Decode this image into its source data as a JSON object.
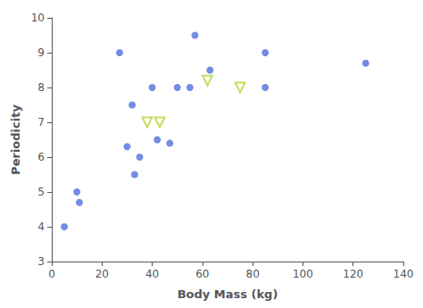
{
  "chart_data": {
    "type": "scatter",
    "xlabel": "Body Mass (kg)",
    "ylabel": "Periodicity",
    "xlim": [
      0,
      140
    ],
    "ylim": [
      3,
      10
    ],
    "xticks": [
      0,
      20,
      40,
      60,
      80,
      100,
      120,
      140
    ],
    "yticks": [
      3,
      4,
      5,
      6,
      7,
      8,
      9,
      10
    ],
    "grid": false,
    "series": [
      {
        "marker": "circle",
        "x": [
          5,
          10,
          11,
          27,
          30,
          32,
          33,
          35,
          40,
          42,
          47,
          50,
          55,
          57,
          63,
          85,
          85,
          125
        ],
        "values": [
          4.0,
          5.0,
          4.7,
          9.0,
          6.3,
          7.5,
          5.5,
          6.0,
          8.0,
          6.5,
          6.4,
          8.0,
          8.0,
          9.5,
          8.5,
          9.0,
          8.0,
          8.7
        ]
      },
      {
        "marker": "open_triangle_down",
        "x": [
          38,
          43,
          62,
          75
        ],
        "values": [
          7.0,
          7.0,
          8.2,
          8.0
        ]
      }
    ]
  }
}
